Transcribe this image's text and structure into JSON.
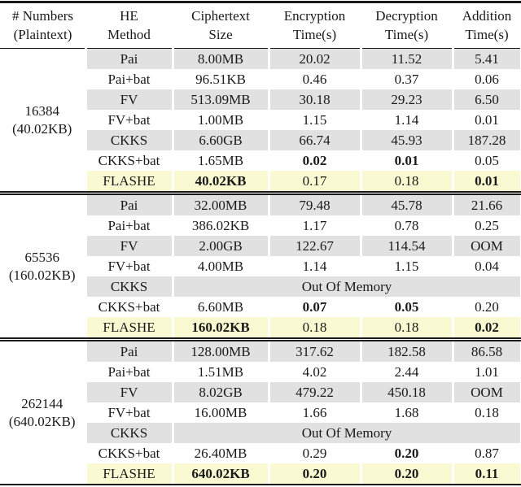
{
  "colors": {
    "row_gray": "#e1e1e1",
    "row_yellow": "#fafad2",
    "rule": "#1a1a1a",
    "text": "#1a1a1a"
  },
  "table": {
    "columns": [
      {
        "key": "numbers",
        "line1": "# Numbers",
        "line2": "(Plaintext)"
      },
      {
        "key": "method",
        "line1": "HE",
        "line2": "Method"
      },
      {
        "key": "size",
        "line1": "Ciphertext",
        "line2": "Size"
      },
      {
        "key": "enc",
        "line1": "Encryption",
        "line2": "Time(s)"
      },
      {
        "key": "dec",
        "line1": "Decryption",
        "line2": "Time(s)"
      },
      {
        "key": "add",
        "line1": "Addition",
        "line2": "Time(s)"
      }
    ],
    "groups": [
      {
        "label_line1": "16384",
        "label_line2": "(40.02KB)",
        "rows": [
          {
            "bg": "gray",
            "cells": [
              {
                "text": "Pai"
              },
              {
                "text": "8.00MB"
              },
              {
                "text": "20.02"
              },
              {
                "text": "11.52"
              },
              {
                "text": "5.41"
              }
            ]
          },
          {
            "bg": "white",
            "cells": [
              {
                "text": "Pai+bat"
              },
              {
                "text": "96.51KB"
              },
              {
                "text": "0.46"
              },
              {
                "text": "0.37"
              },
              {
                "text": "0.06"
              }
            ]
          },
          {
            "bg": "gray",
            "cells": [
              {
                "text": "FV"
              },
              {
                "text": "513.09MB"
              },
              {
                "text": "30.18"
              },
              {
                "text": "29.23"
              },
              {
                "text": "6.50"
              }
            ]
          },
          {
            "bg": "white",
            "cells": [
              {
                "text": "FV+bat"
              },
              {
                "text": "1.00MB"
              },
              {
                "text": "1.15"
              },
              {
                "text": "1.14"
              },
              {
                "text": "0.01"
              }
            ]
          },
          {
            "bg": "gray",
            "cells": [
              {
                "text": "CKKS"
              },
              {
                "text": "6.60GB"
              },
              {
                "text": "66.74"
              },
              {
                "text": "45.93"
              },
              {
                "text": "187.28"
              }
            ]
          },
          {
            "bg": "white",
            "cells": [
              {
                "text": "CKKS+bat"
              },
              {
                "text": "1.65MB"
              },
              {
                "text": "0.02",
                "bold": true
              },
              {
                "text": "0.01",
                "bold": true
              },
              {
                "text": "0.05"
              }
            ]
          },
          {
            "bg": "yellow",
            "cells": [
              {
                "text": "FLASHE"
              },
              {
                "text": "40.02KB",
                "bold": true
              },
              {
                "text": "0.17"
              },
              {
                "text": "0.18"
              },
              {
                "text": "0.01",
                "bold": true
              }
            ]
          }
        ]
      },
      {
        "label_line1": "65536",
        "label_line2": "(160.02KB)",
        "rows": [
          {
            "bg": "gray",
            "cells": [
              {
                "text": "Pai"
              },
              {
                "text": "32.00MB"
              },
              {
                "text": "79.48"
              },
              {
                "text": "45.78"
              },
              {
                "text": "21.66"
              }
            ]
          },
          {
            "bg": "white",
            "cells": [
              {
                "text": "Pai+bat"
              },
              {
                "text": "386.02KB"
              },
              {
                "text": "1.17"
              },
              {
                "text": "0.78"
              },
              {
                "text": "0.25"
              }
            ]
          },
          {
            "bg": "gray",
            "cells": [
              {
                "text": "FV"
              },
              {
                "text": "2.00GB"
              },
              {
                "text": "122.67"
              },
              {
                "text": "114.54"
              },
              {
                "text": "OOM"
              }
            ]
          },
          {
            "bg": "white",
            "cells": [
              {
                "text": "FV+bat"
              },
              {
                "text": "4.00MB"
              },
              {
                "text": "1.14"
              },
              {
                "text": "1.15"
              },
              {
                "text": "0.04"
              }
            ]
          },
          {
            "bg": "gray",
            "cells": [
              {
                "text": "CKKS"
              },
              {
                "text": "Out Of Memory",
                "span": 4
              }
            ]
          },
          {
            "bg": "white",
            "cells": [
              {
                "text": "CKKS+bat"
              },
              {
                "text": "6.60MB"
              },
              {
                "text": "0.07",
                "bold": true
              },
              {
                "text": "0.05",
                "bold": true
              },
              {
                "text": "0.20"
              }
            ]
          },
          {
            "bg": "yellow",
            "cells": [
              {
                "text": "FLASHE"
              },
              {
                "text": "160.02KB",
                "bold": true
              },
              {
                "text": "0.18"
              },
              {
                "text": "0.18"
              },
              {
                "text": "0.02",
                "bold": true
              }
            ]
          }
        ]
      },
      {
        "label_line1": "262144",
        "label_line2": "(640.02KB)",
        "rows": [
          {
            "bg": "gray",
            "cells": [
              {
                "text": "Pai"
              },
              {
                "text": "128.00MB"
              },
              {
                "text": "317.62"
              },
              {
                "text": "182.58"
              },
              {
                "text": "86.58"
              }
            ]
          },
          {
            "bg": "white",
            "cells": [
              {
                "text": "Pai+bat"
              },
              {
                "text": "1.51MB"
              },
              {
                "text": "4.02"
              },
              {
                "text": "2.44"
              },
              {
                "text": "1.01"
              }
            ]
          },
          {
            "bg": "gray",
            "cells": [
              {
                "text": "FV"
              },
              {
                "text": "8.02GB"
              },
              {
                "text": "479.22"
              },
              {
                "text": "450.18"
              },
              {
                "text": "OOM"
              }
            ]
          },
          {
            "bg": "white",
            "cells": [
              {
                "text": "FV+bat"
              },
              {
                "text": "16.00MB"
              },
              {
                "text": "1.66"
              },
              {
                "text": "1.68"
              },
              {
                "text": "0.18"
              }
            ]
          },
          {
            "bg": "gray",
            "cells": [
              {
                "text": "CKKS"
              },
              {
                "text": "Out Of Memory",
                "span": 4
              }
            ]
          },
          {
            "bg": "white",
            "cells": [
              {
                "text": "CKKS+bat"
              },
              {
                "text": "26.40MB"
              },
              {
                "text": "0.29"
              },
              {
                "text": "0.20",
                "bold": true
              },
              {
                "text": "0.87"
              }
            ]
          },
          {
            "bg": "yellow",
            "cells": [
              {
                "text": "FLASHE"
              },
              {
                "text": "640.02KB",
                "bold": true
              },
              {
                "text": "0.20",
                "bold": true
              },
              {
                "text": "0.20",
                "bold": true
              },
              {
                "text": "0.11",
                "bold": true
              }
            ]
          }
        ]
      }
    ]
  }
}
